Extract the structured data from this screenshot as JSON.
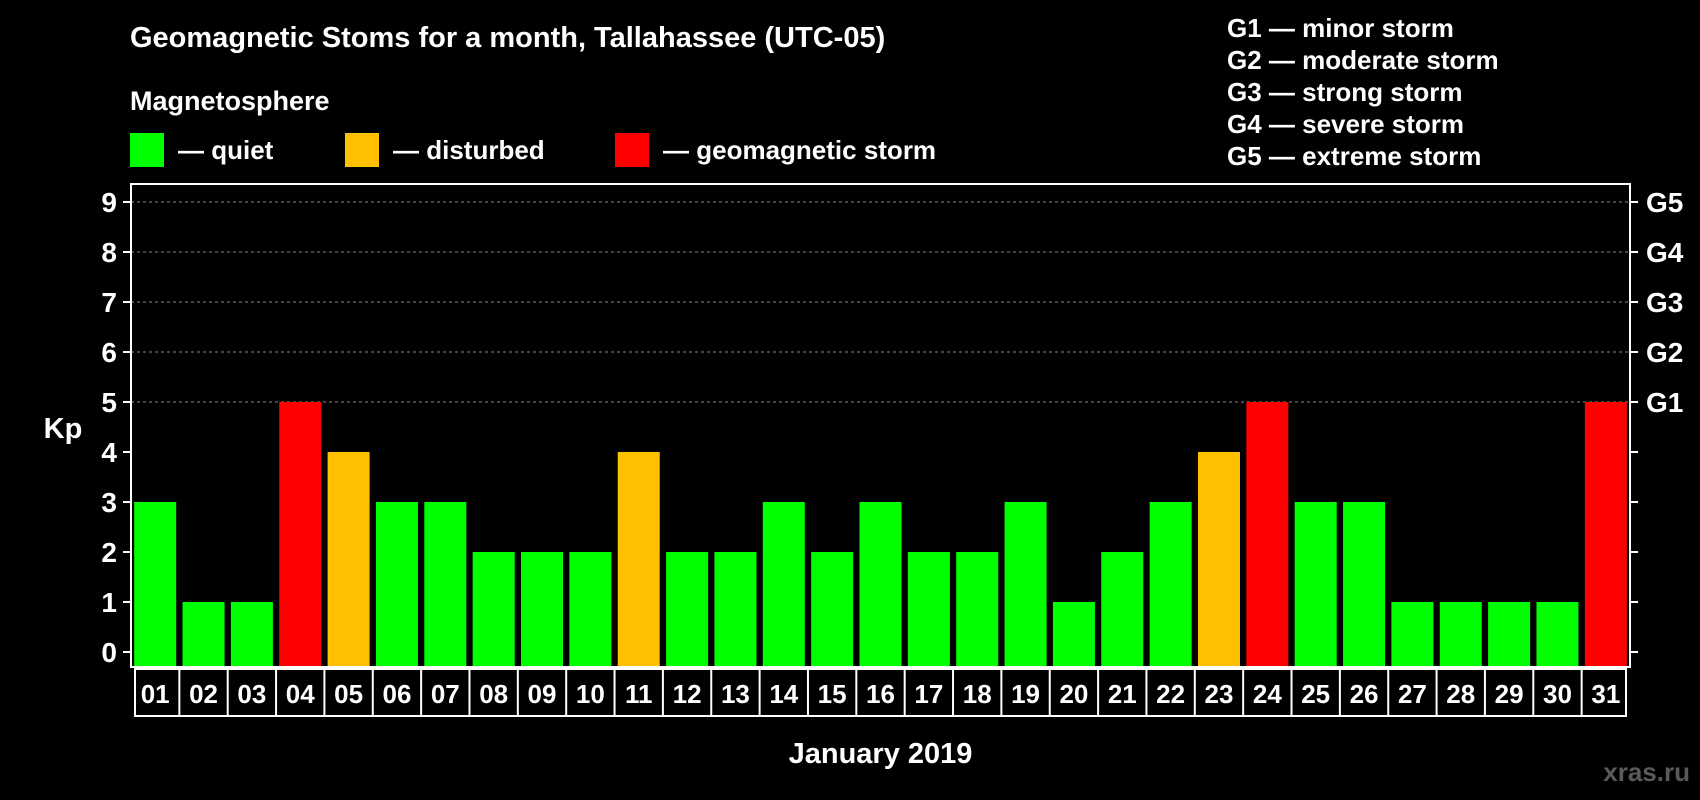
{
  "chart_data": {
    "type": "bar",
    "title": "Geomagnetic Stoms for a month, Tallahassee (UTC-05)",
    "subtitle": "Magnetosphere",
    "xlabel": "January 2019",
    "ylabel": "Kp",
    "ylim": [
      0,
      9
    ],
    "yticks": [
      0,
      1,
      2,
      3,
      4,
      5,
      6,
      7,
      8,
      9
    ],
    "grid": true,
    "categories": [
      "01",
      "02",
      "03",
      "04",
      "05",
      "06",
      "07",
      "08",
      "09",
      "10",
      "11",
      "12",
      "13",
      "14",
      "15",
      "16",
      "17",
      "18",
      "19",
      "20",
      "21",
      "22",
      "23",
      "24",
      "25",
      "26",
      "27",
      "28",
      "29",
      "30",
      "31"
    ],
    "values": [
      3,
      1,
      1,
      5,
      4,
      3,
      3,
      2,
      2,
      2,
      4,
      2,
      2,
      3,
      2,
      3,
      2,
      2,
      3,
      1,
      2,
      3,
      4,
      5,
      3,
      3,
      1,
      1,
      1,
      1,
      5
    ],
    "status": [
      "quiet",
      "quiet",
      "quiet",
      "storm",
      "disturbed",
      "quiet",
      "quiet",
      "quiet",
      "quiet",
      "quiet",
      "disturbed",
      "quiet",
      "quiet",
      "quiet",
      "quiet",
      "quiet",
      "quiet",
      "quiet",
      "quiet",
      "quiet",
      "quiet",
      "quiet",
      "disturbed",
      "storm",
      "quiet",
      "quiet",
      "quiet",
      "quiet",
      "quiet",
      "quiet",
      "storm"
    ],
    "colors": {
      "quiet": "#00ff00",
      "disturbed": "#ffc000",
      "storm": "#ff0000"
    },
    "legend": [
      {
        "key": "quiet",
        "label": "— quiet"
      },
      {
        "key": "disturbed",
        "label": "— disturbed"
      },
      {
        "key": "storm",
        "label": "— geomagnetic storm"
      }
    ],
    "right_axis": [
      {
        "kp": 5,
        "label": "G1"
      },
      {
        "kp": 6,
        "label": "G2"
      },
      {
        "kp": 7,
        "label": "G3"
      },
      {
        "kp": 8,
        "label": "G4"
      },
      {
        "kp": 9,
        "label": "G5"
      }
    ],
    "g_legend": [
      "G1 — minor storm",
      "G2 — moderate storm",
      "G3 — strong storm",
      "G4 — severe storm",
      "G5 — extreme storm"
    ]
  },
  "watermark": "xras.ru"
}
